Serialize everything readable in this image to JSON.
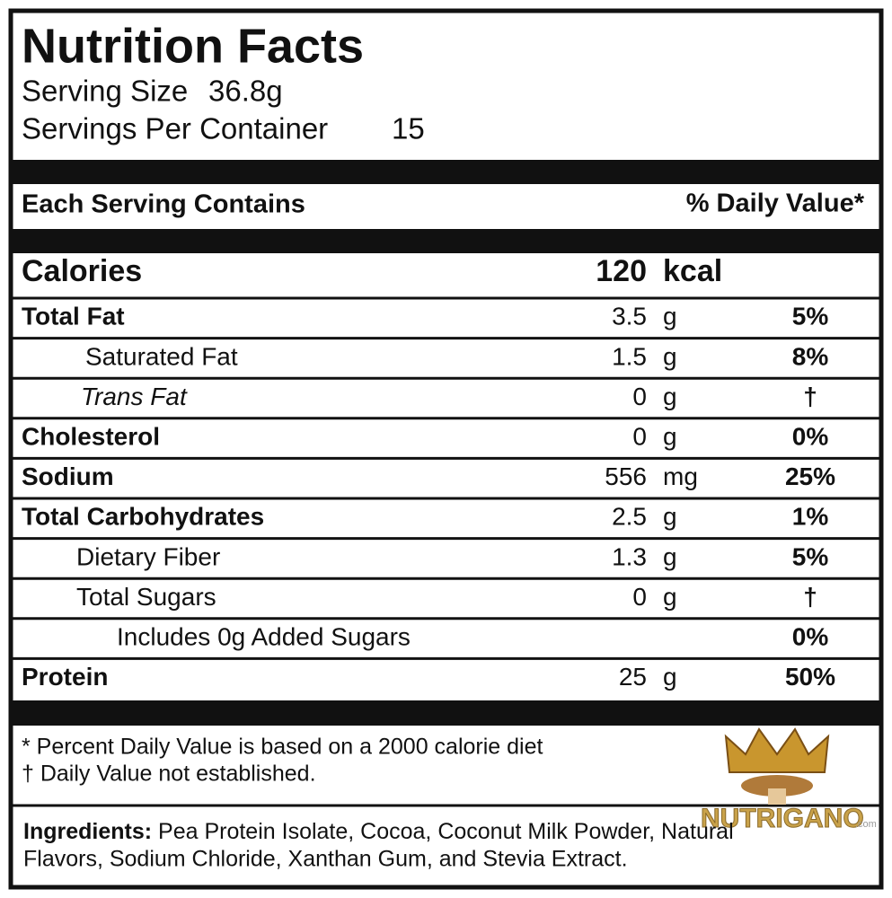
{
  "title": "Nutrition Facts",
  "serving_size": {
    "label": "Serving Size",
    "value": "36.8g"
  },
  "servings_per_container": {
    "label": "Servings Per Container",
    "value": "15"
  },
  "header": {
    "left": "Each Serving Contains",
    "right": "% Daily Value*"
  },
  "calories": {
    "label": "Calories",
    "amount": "120",
    "unit": "kcal"
  },
  "rows": [
    {
      "name": "Total Fat",
      "amount": "3.5",
      "unit": "g",
      "dv": "5%"
    },
    {
      "name": "Saturated Fat",
      "amount": "1.5",
      "unit": "g",
      "dv": "8%"
    },
    {
      "name": "Trans Fat",
      "amount": "0",
      "unit": "g",
      "dv": "†"
    },
    {
      "name": "Cholesterol",
      "amount": "0",
      "unit": "g",
      "dv": "0%"
    },
    {
      "name": "Sodium",
      "amount": "556",
      "unit": "mg",
      "dv": "25%"
    },
    {
      "name": "Total Carbohydrates",
      "amount": "2.5",
      "unit": "g",
      "dv": "1%"
    },
    {
      "name": "Dietary Fiber",
      "amount": "1.3",
      "unit": "g",
      "dv": "5%"
    },
    {
      "name": "Total Sugars",
      "amount": "0",
      "unit": "g",
      "dv": "†"
    },
    {
      "name": "Includes 0g Added Sugars",
      "dv": "0%"
    },
    {
      "name": "Protein",
      "amount": "25",
      "unit": "g",
      "dv": "50%"
    }
  ],
  "footnotes": [
    "* Percent Daily Value is based on a 2000 calorie diet",
    "†  Daily Value not established."
  ],
  "ingredients": {
    "label": "Ingredients:",
    "lines": [
      "Pea Protein Isolate, Cocoa, Coconut Milk Powder, Natural",
      "Flavors, Sodium Chloride, Xanthan Gum, and Stevia Extract."
    ]
  },
  "logo": {
    "name": "NUTRIGANO",
    "suffix": ".com"
  }
}
